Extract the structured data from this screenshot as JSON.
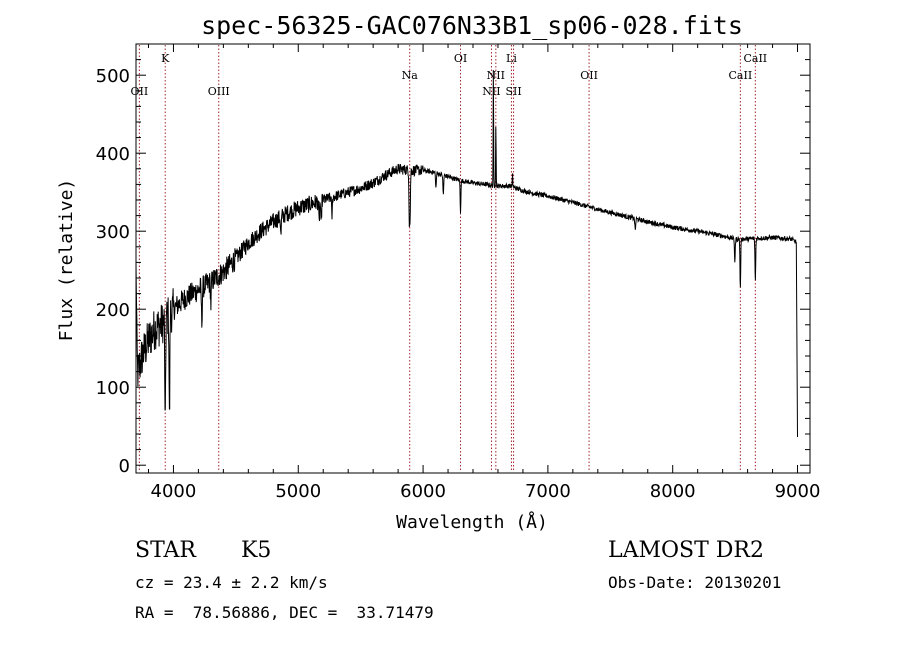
{
  "chart_data": {
    "type": "line",
    "title": "spec-56325-GAC076N33B1_sp06-028.fits",
    "xlabel": "Wavelength (Å)",
    "ylabel": "Flux (relative)",
    "xlim": [
      3700,
      9100
    ],
    "ylim": [
      -10,
      540
    ],
    "xticks": [
      4000,
      5000,
      6000,
      7000,
      8000,
      9000
    ],
    "yticks": [
      0,
      100,
      200,
      300,
      400,
      500
    ],
    "grid": false,
    "line_color": "#000000",
    "marker_color": "#a0282d",
    "spectrum": {
      "continuum": [
        [
          3700,
          110
        ],
        [
          3750,
          140
        ],
        [
          3800,
          160
        ],
        [
          3850,
          175
        ],
        [
          3900,
          180
        ],
        [
          3950,
          190
        ],
        [
          4000,
          200
        ],
        [
          4100,
          215
        ],
        [
          4200,
          225
        ],
        [
          4300,
          235
        ],
        [
          4400,
          248
        ],
        [
          4500,
          265
        ],
        [
          4600,
          285
        ],
        [
          4700,
          300
        ],
        [
          4800,
          312
        ],
        [
          4900,
          322
        ],
        [
          5000,
          330
        ],
        [
          5100,
          335
        ],
        [
          5200,
          340
        ],
        [
          5300,
          345
        ],
        [
          5400,
          350
        ],
        [
          5500,
          355
        ],
        [
          5600,
          362
        ],
        [
          5700,
          372
        ],
        [
          5800,
          380
        ],
        [
          5900,
          378
        ],
        [
          6000,
          378
        ],
        [
          6100,
          375
        ],
        [
          6200,
          370
        ],
        [
          6300,
          365
        ],
        [
          6400,
          362
        ],
        [
          6500,
          360
        ],
        [
          6600,
          358
        ],
        [
          6700,
          358
        ],
        [
          6800,
          352
        ],
        [
          6900,
          348
        ],
        [
          7000,
          345
        ],
        [
          7200,
          337
        ],
        [
          7400,
          328
        ],
        [
          7600,
          320
        ],
        [
          7800,
          312
        ],
        [
          8000,
          305
        ],
        [
          8200,
          300
        ],
        [
          8400,
          294
        ],
        [
          8500,
          290
        ],
        [
          8600,
          290
        ],
        [
          8800,
          292
        ],
        [
          8950,
          290
        ],
        [
          9000,
          285
        ]
      ],
      "absorptions": [
        [
          3934,
          -150
        ],
        [
          3968,
          -140
        ],
        [
          4227,
          -45
        ],
        [
          4300,
          -30
        ],
        [
          4861,
          -25
        ],
        [
          5167,
          -30
        ],
        [
          5183,
          -35
        ],
        [
          5270,
          -25
        ],
        [
          5890,
          -60
        ],
        [
          5896,
          -55
        ],
        [
          6103,
          -20
        ],
        [
          6162,
          -25
        ],
        [
          6300,
          -40
        ],
        [
          6563,
          -20
        ],
        [
          7700,
          -15
        ],
        [
          8498,
          -30
        ],
        [
          8542,
          -65
        ],
        [
          8662,
          -55
        ]
      ],
      "emissions": [
        [
          6563,
          170
        ],
        [
          6583,
          80
        ],
        [
          6717,
          15
        ]
      ]
    },
    "line_markers": [
      {
        "label": "OII",
        "x": 3727,
        "row": 2
      },
      {
        "label": "K",
        "x": 3934,
        "row": 0
      },
      {
        "label": "OIII",
        "x": 4363,
        "row": 2
      },
      {
        "label": "Na",
        "x": 5893,
        "row": 1
      },
      {
        "label": "OI",
        "x": 6300,
        "row": 0
      },
      {
        "label": "NII",
        "x": 6548,
        "row": 2
      },
      {
        "label": "NII",
        "x": 6583,
        "row": 1
      },
      {
        "label": "Li",
        "x": 6708,
        "row": 0
      },
      {
        "label": "SII",
        "x": 6725,
        "row": 2
      },
      {
        "label": "OII",
        "x": 7330,
        "row": 1
      },
      {
        "label": "CaII",
        "x": 8542,
        "row": 1
      },
      {
        "label": "CaII",
        "x": 8662,
        "row": 0
      }
    ]
  },
  "info": {
    "object_class": "STAR",
    "subclass": "K5",
    "survey": "LAMOST DR2",
    "redshift": "cz = 23.4 ± 2.2 km/s",
    "obs_date": "Obs-Date: 20130201",
    "coords": "RA =  78.56886, DEC =  33.71479"
  }
}
